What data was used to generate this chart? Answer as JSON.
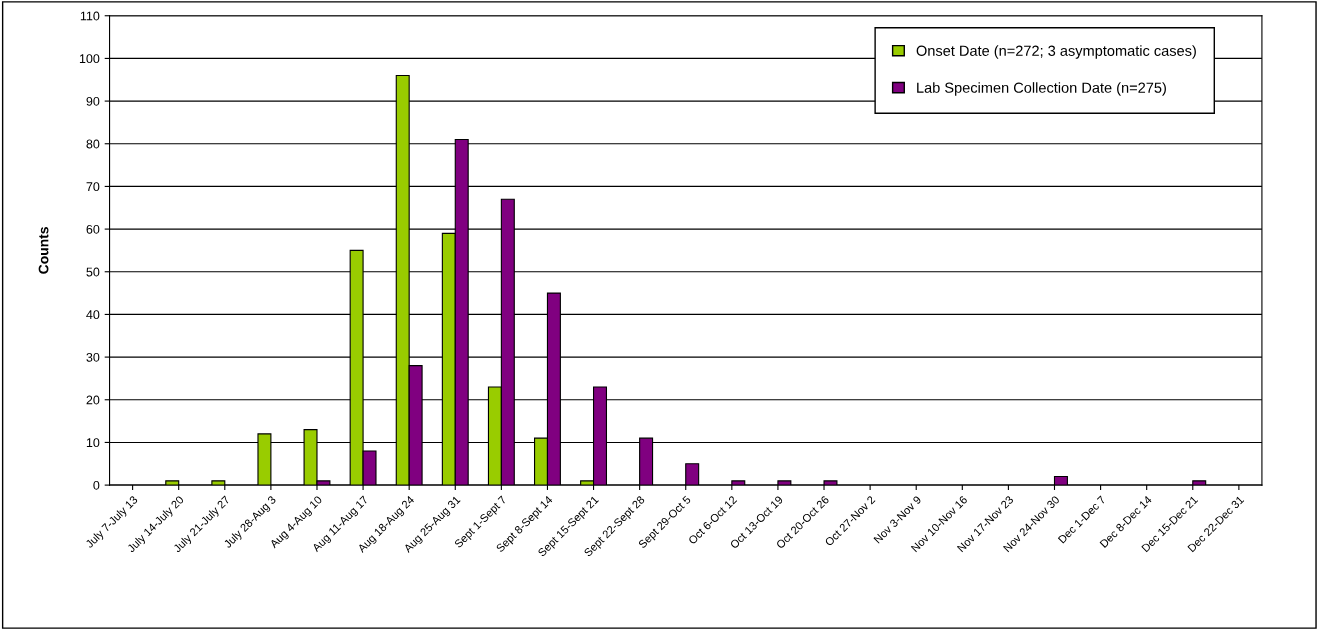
{
  "chart_data": {
    "type": "bar",
    "ylabel": "Counts",
    "categories": [
      "July 7-July 13",
      "July 14-July 20",
      "July 21-July 27",
      "July 28-Aug 3",
      "Aug 4-Aug 10",
      "Aug 11-Aug 17",
      "Aug 18-Aug 24",
      "Aug 25-Aug 31",
      "Sept 1-Sept 7",
      "Sept 8-Sept 14",
      "Sept 15-Sept 21",
      "Sept 22-Sept 28",
      "Sept 29-Oct 5",
      "Oct 6-Oct 12",
      "Oct 13-Oct 19",
      "Oct 20-Oct 26",
      "Oct 27-Nov 2",
      "Nov 3-Nov 9",
      "Nov 10-Nov 16",
      "Nov 17-Nov 23",
      "Nov 24-Nov 30",
      "Dec 1-Dec 7",
      "Dec 8-Dec 14",
      "Dec 15-Dec 21",
      "Dec 22-Dec 31"
    ],
    "series": [
      {
        "name": "Onset Date (n=272; 3 asymptomatic cases)",
        "color": "#99cc00",
        "values": [
          0,
          1,
          1,
          12,
          13,
          55,
          96,
          59,
          23,
          11,
          1,
          0,
          0,
          0,
          0,
          0,
          0,
          0,
          0,
          0,
          0,
          0,
          0,
          0,
          0
        ]
      },
      {
        "name": "Lab Specimen Collection Date (n=275)",
        "color": "#800080",
        "values": [
          0,
          0,
          0,
          0,
          1,
          8,
          28,
          81,
          67,
          45,
          23,
          11,
          5,
          1,
          1,
          1,
          0,
          0,
          0,
          0,
          2,
          0,
          0,
          1,
          0
        ]
      }
    ],
    "ylim": [
      0,
      110
    ],
    "yticks": [
      0,
      10,
      20,
      30,
      40,
      50,
      60,
      70,
      80,
      90,
      100,
      110
    ],
    "grid": "y",
    "legend": "top right"
  }
}
